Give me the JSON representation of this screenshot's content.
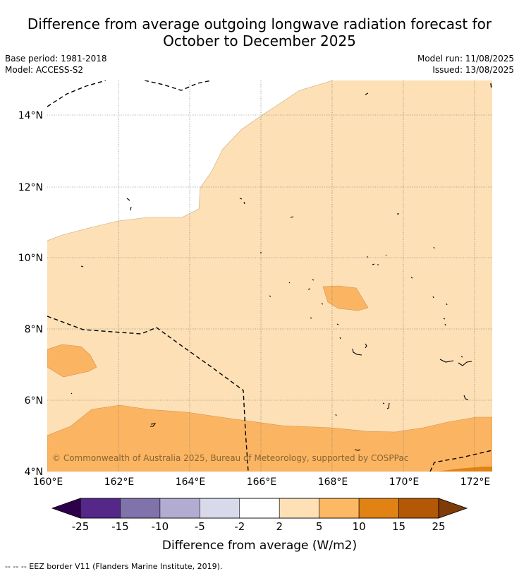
{
  "title": {
    "line1": "Difference from average outgoing longwave radiation forecast for",
    "line2": "October to December 2025"
  },
  "info": {
    "base_period": "Base period: 1981-2018",
    "model": "Model: ACCESS-S2",
    "model_run": "Model run: 11/08/2025",
    "issued": "Issued: 13/08/2025"
  },
  "map": {
    "lon_labels": [
      "160°E",
      "162°E",
      "164°E",
      "166°E",
      "168°E",
      "170°E",
      "172°E"
    ],
    "lat_labels": [
      "14°N",
      "12°N",
      "10°N",
      "8°N",
      "6°N",
      "4°N"
    ],
    "copyright": "© Commonwealth of Australia 2025, Bureau of Meteorology, supported by COSPPac",
    "colors": {
      "band_2_5": "#fde0b6",
      "band_5_10": "#fbb562",
      "band_10_15": "#e08214",
      "band_15_25": "#b35806",
      "white": "#ffffff"
    }
  },
  "colorbar": {
    "ticks": [
      "-25",
      "-15",
      "-10",
      "-5",
      "-2",
      "2",
      "5",
      "10",
      "15",
      "25"
    ],
    "colors": [
      "#542788",
      "#8073ac",
      "#b2abd2",
      "#d8daeb",
      "#ffffff",
      "#fee0b6",
      "#fdb863",
      "#e08214",
      "#b35806"
    ],
    "under_color": "#2d004b",
    "over_color": "#7f3b08",
    "label": "Difference from average (W/m2)"
  },
  "footer": "--  --  -- EEZ border V11 (Flanders Marine Institute, 2019)."
}
